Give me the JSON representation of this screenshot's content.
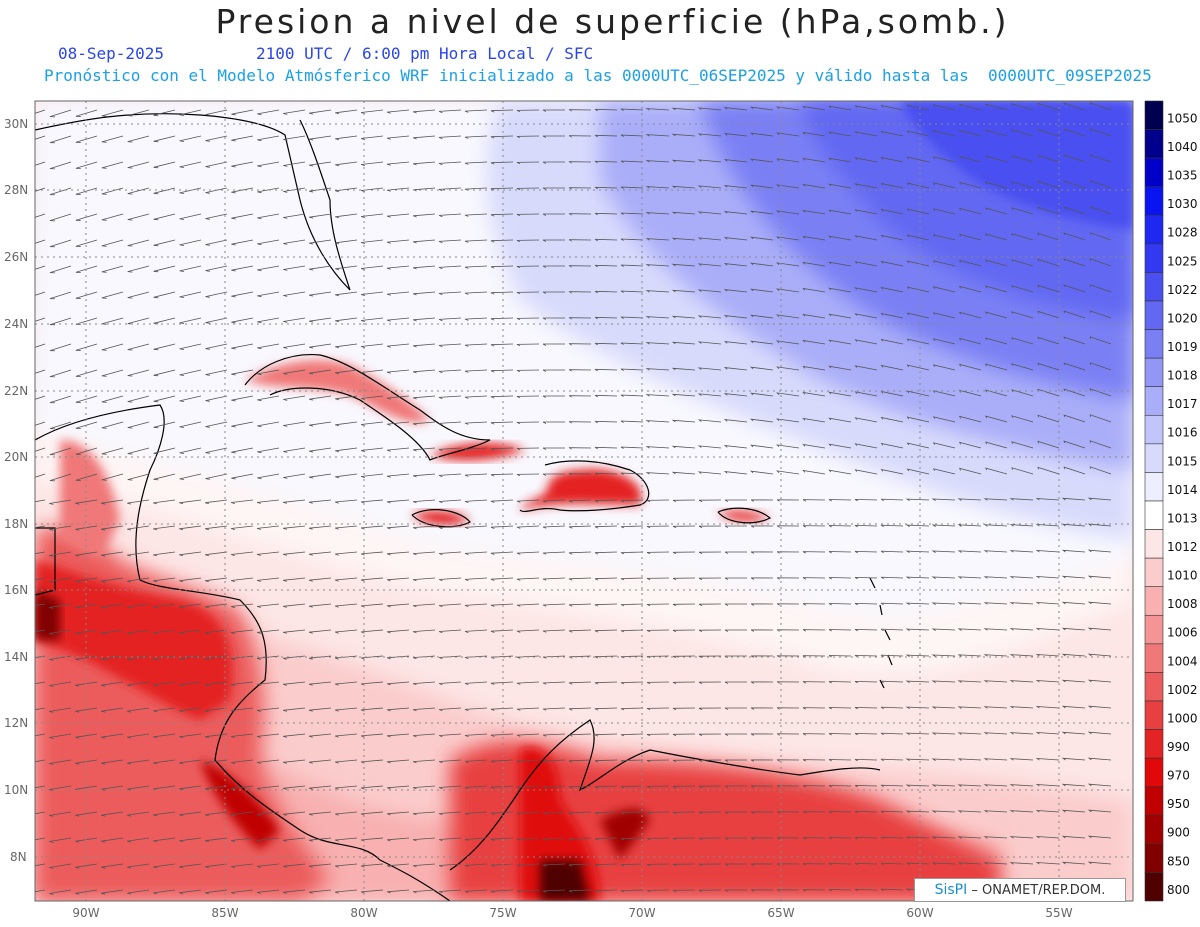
{
  "title": "Presion a nivel de superficie (hPa,somb.)",
  "date": "08-Sep-2025",
  "time_line": "2100 UTC / 6:00 pm Hora Local / SFC",
  "forecast_line": "Pronóstico con el Modelo Atmósferico WRF inicializado a las 0000UTC_06SEP2025 y válido hasta las  0000UTC_09SEP2025",
  "credit": {
    "logo": "SisPI",
    "text": "– ONAMET/REP.DOM."
  },
  "colors": {
    "text_blue": "#2a46e8",
    "text_cyan": "#1aa0e8",
    "low": "#e60000",
    "high": "#3c46f0"
  },
  "latitude_labels": [
    "30N",
    "28N",
    "26N",
    "24N",
    "22N",
    "20N",
    "18N",
    "16N",
    "14N",
    "12N",
    "10N",
    "8N"
  ],
  "longitude_labels": [
    "90W",
    "85W",
    "80W",
    "75W",
    "70W",
    "65W",
    "60W",
    "55W"
  ],
  "colorbar": {
    "labels": [
      "1050",
      "1040",
      "1035",
      "1030",
      "1028",
      "1025",
      "1022",
      "1020",
      "1019",
      "1018",
      "1017",
      "1016",
      "1015",
      "1014",
      "1013",
      "1012",
      "1010",
      "1008",
      "1006",
      "1004",
      "1002",
      "1000",
      "990",
      "970",
      "950",
      "900",
      "850",
      "800"
    ],
    "colors": [
      "#000050",
      "#00008c",
      "#0000c8",
      "#0a14f0",
      "#1e28f0",
      "#3239f0",
      "#4a50f0",
      "#6268f2",
      "#7a80f4",
      "#9297f6",
      "#aaaef8",
      "#c2c5fa",
      "#d8dafc",
      "#eeeffe",
      "#ffffff",
      "#fde6e6",
      "#fbcccc",
      "#f8b0b0",
      "#f49494",
      "#f07878",
      "#ec5c5c",
      "#e84040",
      "#e42424",
      "#e00808",
      "#c00000",
      "#a00000",
      "#800000",
      "#500000"
    ]
  }
}
